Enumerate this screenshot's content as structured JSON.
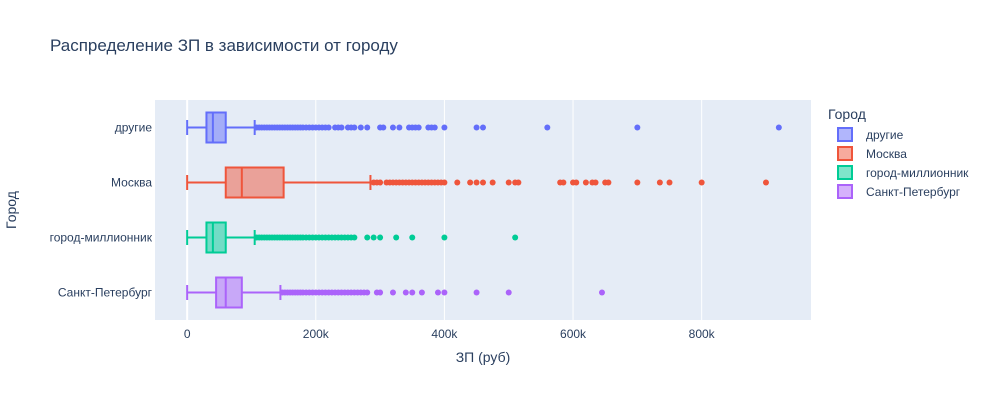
{
  "chart_data": {
    "type": "box",
    "orientation": "horizontal",
    "title": "Распределение ЗП в зависимости от городу",
    "xlabel": "ЗП (руб)",
    "ylabel": "Город",
    "xlim": [
      -50000,
      970000
    ],
    "x_ticks": [
      {
        "value": 0,
        "label": "0"
      },
      {
        "value": 200000,
        "label": "200k"
      },
      {
        "value": 400000,
        "label": "400k"
      },
      {
        "value": 600000,
        "label": "600k"
      },
      {
        "value": 800000,
        "label": "800k"
      }
    ],
    "grid": true,
    "legend": {
      "title": "Город",
      "position": "right"
    },
    "series": [
      {
        "name": "другие",
        "color": "#636efa",
        "min": 0,
        "q1": 30000,
        "median": 40000,
        "q3": 60000,
        "upper_fence": 105000,
        "outliers": [
          108000,
          112000,
          116000,
          120000,
          124000,
          128000,
          132000,
          136000,
          140000,
          144000,
          148000,
          152000,
          156000,
          160000,
          164000,
          168000,
          172000,
          176000,
          180000,
          185000,
          190000,
          195000,
          200000,
          205000,
          210000,
          215000,
          220000,
          230000,
          235000,
          240000,
          250000,
          255000,
          260000,
          270000,
          280000,
          300000,
          305000,
          320000,
          330000,
          345000,
          350000,
          355000,
          360000,
          375000,
          380000,
          385000,
          400000,
          450000,
          460000,
          560000,
          700000,
          920000
        ]
      },
      {
        "name": "Москва",
        "color": "#ef553b",
        "min": 0,
        "q1": 60000,
        "median": 85000,
        "q3": 150000,
        "upper_fence": 285000,
        "outliers": [
          290000,
          295000,
          300000,
          310000,
          315000,
          320000,
          325000,
          330000,
          335000,
          340000,
          345000,
          350000,
          355000,
          360000,
          365000,
          370000,
          375000,
          380000,
          385000,
          390000,
          395000,
          400000,
          420000,
          440000,
          450000,
          460000,
          475000,
          500000,
          510000,
          515000,
          580000,
          585000,
          600000,
          605000,
          620000,
          630000,
          635000,
          650000,
          655000,
          700000,
          735000,
          750000,
          800000,
          900000
        ]
      },
      {
        "name": "город-миллионник",
        "color": "#00cc96",
        "min": 0,
        "q1": 30000,
        "median": 40000,
        "q3": 60000,
        "upper_fence": 105000,
        "outliers": [
          108000,
          112000,
          116000,
          120000,
          124000,
          128000,
          132000,
          136000,
          140000,
          144000,
          148000,
          152000,
          156000,
          160000,
          164000,
          168000,
          172000,
          176000,
          180000,
          185000,
          190000,
          195000,
          200000,
          205000,
          210000,
          215000,
          220000,
          225000,
          230000,
          235000,
          240000,
          245000,
          250000,
          255000,
          260000,
          280000,
          290000,
          300000,
          325000,
          350000,
          400000,
          510000
        ]
      },
      {
        "name": "Санкт-Петербург",
        "color": "#ab63fa",
        "min": 0,
        "q1": 45000,
        "median": 60000,
        "q3": 85000,
        "upper_fence": 145000,
        "outliers": [
          148000,
          152000,
          156000,
          160000,
          164000,
          168000,
          172000,
          176000,
          180000,
          185000,
          190000,
          195000,
          200000,
          205000,
          210000,
          215000,
          220000,
          225000,
          230000,
          235000,
          240000,
          245000,
          250000,
          255000,
          260000,
          265000,
          270000,
          275000,
          280000,
          295000,
          300000,
          320000,
          340000,
          350000,
          365000,
          390000,
          400000,
          450000,
          500000,
          645000
        ]
      }
    ]
  }
}
